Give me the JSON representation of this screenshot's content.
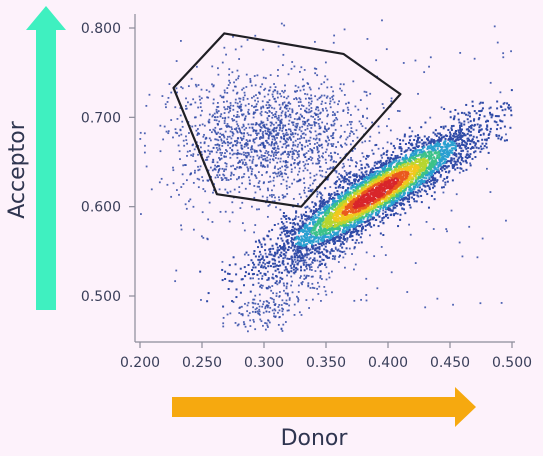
{
  "colors": {
    "background": "#fdf2fb",
    "axis": "#8c8c9a",
    "tick_text": "#3a3f5a",
    "acceptor_arrow": "#3ff0c0",
    "donor_arrow": "#f6a90f",
    "gate": "#1f1f24",
    "sparse_point": "#2f4aa6",
    "density_ramp": [
      "#2f4aa6",
      "#2aa0d0",
      "#3cc28a",
      "#b7d630",
      "#f1c81e",
      "#ea5a1f",
      "#d8262b"
    ]
  },
  "chart_data": {
    "type": "scatter",
    "xlabel": "Donor",
    "ylabel": "Acceptor",
    "xlim": [
      0.2,
      0.5
    ],
    "ylim": [
      0.46,
      0.81
    ],
    "x_ticks": [
      "0.200",
      "0.250",
      "0.300",
      "0.350",
      "0.400",
      "0.450",
      "0.500"
    ],
    "y_ticks": [
      "0.500",
      "0.600",
      "0.700",
      "0.800"
    ],
    "grid": false,
    "legend": "none",
    "populations": [
      {
        "shape": "elongated high-density cloud",
        "center_x": 0.39,
        "center_y": 0.615,
        "axis_angle_deg": 42,
        "spread_major": 0.055,
        "spread_minor": 0.012,
        "relative_count": 0.7,
        "colored_by_density": true
      },
      {
        "shape": "diffuse cloud",
        "center_x": 0.305,
        "center_y": 0.675,
        "spread_x": 0.04,
        "spread_y": 0.035,
        "relative_count": 0.25,
        "colored_by_density": false
      },
      {
        "shape": "sparse tail",
        "from_x": 0.285,
        "from_y": 0.465,
        "to_x": 0.36,
        "to_y": 0.56,
        "relative_count": 0.05,
        "colored_by_density": false
      },
      {
        "shape": "scattered outliers",
        "region_x": [
          0.225,
          0.5
        ],
        "region_y": [
          0.48,
          0.81
        ],
        "relative_count": 0.03,
        "colored_by_density": false
      }
    ],
    "gate_polygon": [
      {
        "x": 0.268,
        "y": 0.794
      },
      {
        "x": 0.364,
        "y": 0.771
      },
      {
        "x": 0.41,
        "y": 0.726
      },
      {
        "x": 0.33,
        "y": 0.6
      },
      {
        "x": 0.262,
        "y": 0.614
      },
      {
        "x": 0.227,
        "y": 0.733
      }
    ]
  }
}
